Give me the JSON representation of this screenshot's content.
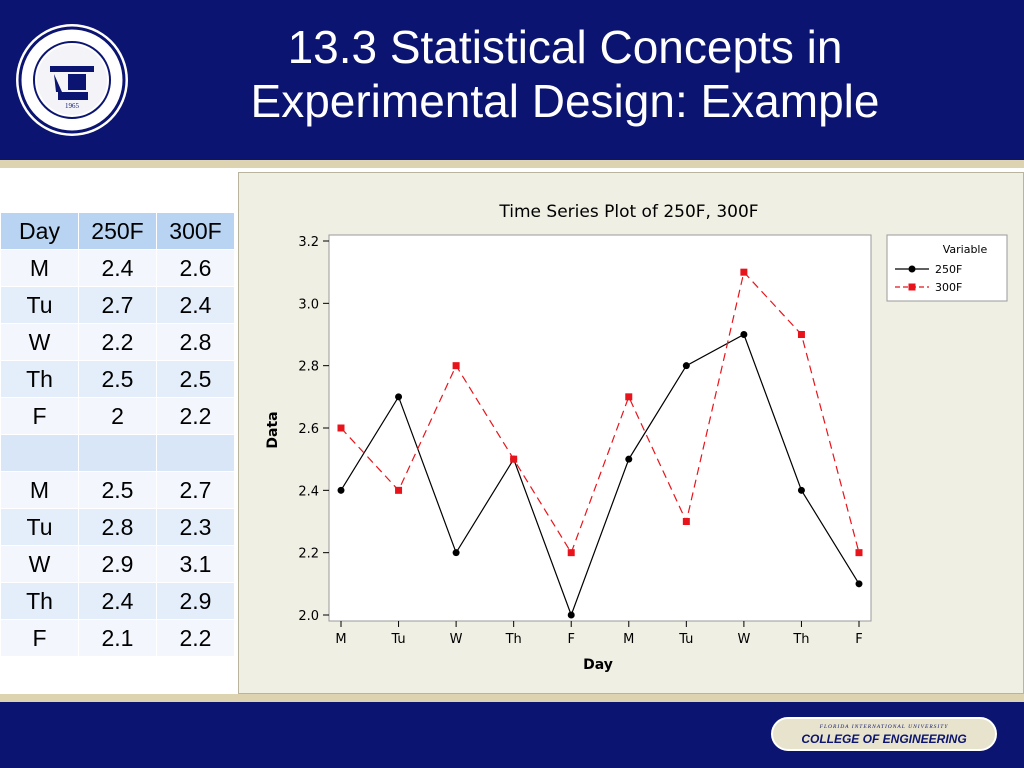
{
  "slide": {
    "title_line1": "13.3 Statistical Concepts in",
    "title_line2": "Experimental Design: Example",
    "seal_text": "FLORIDA INTERNATIONAL UNIVERSITY · MIAMI ·",
    "seal_year": "1965",
    "footer_university": "FLORIDA INTERNATIONAL UNIVERSITY",
    "footer_college": "COLLEGE OF ENGINEERING",
    "colors": {
      "navy": "#0b1470",
      "gold": "#ddd3b0"
    }
  },
  "table": {
    "headers": [
      "Day",
      "250F",
      "300F"
    ],
    "rows": [
      [
        "M",
        "2.4",
        "2.6"
      ],
      [
        "Tu",
        "2.7",
        "2.4"
      ],
      [
        "W",
        "2.2",
        "2.8"
      ],
      [
        "Th",
        "2.5",
        "2.5"
      ],
      [
        "F",
        "2",
        "2.2"
      ],
      [
        "",
        "",
        ""
      ],
      [
        "M",
        "2.5",
        "2.7"
      ],
      [
        "Tu",
        "2.8",
        "2.3"
      ],
      [
        "W",
        "2.9",
        "3.1"
      ],
      [
        "Th",
        "2.4",
        "2.9"
      ],
      [
        "F",
        "2.1",
        "2.2"
      ]
    ]
  },
  "chart_data": {
    "type": "line",
    "title": "Time Series Plot of 250F, 300F",
    "xlabel": "Day",
    "ylabel": "Data",
    "categories": [
      "M",
      "Tu",
      "W",
      "Th",
      "F",
      "M",
      "Tu",
      "W",
      "Th",
      "F"
    ],
    "yticks": [
      "2.0",
      "2.2",
      "2.4",
      "2.6",
      "2.8",
      "3.0",
      "3.2"
    ],
    "ylim": [
      2.0,
      3.2
    ],
    "legend_title": "Variable",
    "legend_position": "right",
    "series": [
      {
        "name": "250F",
        "values": [
          2.4,
          2.7,
          2.2,
          2.5,
          2.0,
          2.5,
          2.8,
          2.9,
          2.4,
          2.1
        ],
        "color": "#000000",
        "marker": "circle",
        "dash": "solid"
      },
      {
        "name": "300F",
        "values": [
          2.6,
          2.4,
          2.8,
          2.5,
          2.2,
          2.7,
          2.3,
          3.1,
          2.9,
          2.2
        ],
        "color": "#e8141b",
        "marker": "square",
        "dash": "dashed"
      }
    ]
  }
}
